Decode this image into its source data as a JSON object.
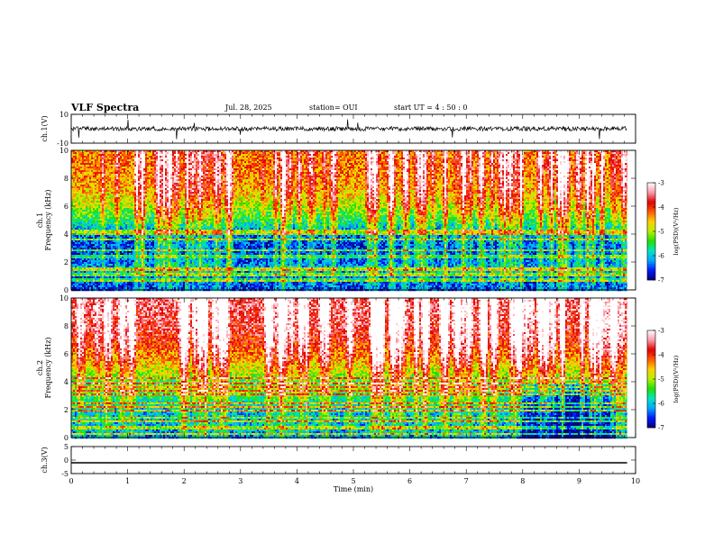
{
  "header": {
    "title": "VLF Spectra",
    "date": "Jul. 28, 2025",
    "station": "station= OUI",
    "start_ut": "start  UT  =  4 : 50 : 0"
  },
  "colors": {
    "axis": "#000000",
    "colormap": [
      "#05007a",
      "#0019ff",
      "#00a8ff",
      "#00e5c0",
      "#20e000",
      "#b8f000",
      "#ffd000",
      "#ff5a00",
      "#e00000",
      "#ff9aa8",
      "#ffffff"
    ]
  },
  "chart_data": [
    {
      "type": "line",
      "name": "channel-1-waveform",
      "ylabel": "ch.1(V)",
      "ylim": [
        -10,
        10
      ],
      "yticks": [
        "10",
        "-10"
      ],
      "xlim": [
        0,
        10
      ],
      "description_values": {
        "baseline_v": 0,
        "typical_amplitude_v": 1.5,
        "spike_amplitude_v": 8
      }
    },
    {
      "type": "heatmap",
      "name": "channel-1-spectrogram",
      "ylabel": "ch.1\nFrequency (kHz)",
      "ylabel_line1": "ch.1",
      "ylabel_line2": "Frequency (kHz)",
      "ylim": [
        0,
        10
      ],
      "yticks": [
        "0",
        "2",
        "4",
        "6",
        "8",
        "10"
      ],
      "xlim": [
        0,
        10
      ],
      "data_end_min": 9.85,
      "colorbar": {
        "label": "log(PSD)(V²/Hz)",
        "range": [
          -7,
          -3
        ],
        "ticks": [
          "-3",
          "-4",
          "-5",
          "-6",
          "-7"
        ]
      },
      "profile": [
        {
          "f": 0.0,
          "v": -6.6
        },
        {
          "f": 1.0,
          "v": -6.5
        },
        {
          "f": 1.5,
          "v": -6.0
        },
        {
          "f": 2.0,
          "v": -6.4
        },
        {
          "f": 3.0,
          "v": -6.6
        },
        {
          "f": 4.0,
          "v": -6.4
        },
        {
          "f": 5.0,
          "v": -5.6
        },
        {
          "f": 6.0,
          "v": -5.0
        },
        {
          "f": 7.0,
          "v": -4.6
        },
        {
          "f": 8.0,
          "v": -4.4
        },
        {
          "f": 9.0,
          "v": -4.3
        },
        {
          "f": 10.0,
          "v": -4.3
        }
      ]
    },
    {
      "type": "heatmap",
      "name": "channel-2-spectrogram",
      "ylabel": "ch.2\nFrequency (kHz)",
      "ylabel_line1": "ch.2",
      "ylabel_line2": "Frequency (kHz)",
      "ylim": [
        0,
        10
      ],
      "yticks": [
        "0",
        "2",
        "4",
        "6",
        "8",
        "10"
      ],
      "xlim": [
        0,
        10
      ],
      "data_end_min": 9.85,
      "colorbar": {
        "label": "log(PSD)(V²/Hz)",
        "range": [
          -7,
          -3
        ],
        "ticks": [
          "-3",
          "-4",
          "-5",
          "-6",
          "-7"
        ]
      },
      "profile": [
        {
          "f": 0.0,
          "v": -6.3
        },
        {
          "f": 1.0,
          "v": -6.1
        },
        {
          "f": 2.0,
          "v": -6.0
        },
        {
          "f": 3.0,
          "v": -5.6
        },
        {
          "f": 3.5,
          "v": -5.2
        },
        {
          "f": 4.0,
          "v": -5.4
        },
        {
          "f": 5.0,
          "v": -4.8
        },
        {
          "f": 6.0,
          "v": -4.3
        },
        {
          "f": 7.0,
          "v": -3.9
        },
        {
          "f": 8.0,
          "v": -3.7
        },
        {
          "f": 9.0,
          "v": -3.6
        },
        {
          "f": 10.0,
          "v": -3.6
        }
      ],
      "quiet_region": {
        "start_min": 7.85,
        "end_min": 9.6,
        "f_max_khz": 4.0,
        "offset": -1.0
      }
    },
    {
      "type": "line",
      "name": "channel-3-trace",
      "ylabel": "ch.3(V)",
      "ylim": [
        -5,
        5
      ],
      "yticks": [
        "5",
        "0",
        "-5"
      ],
      "xlim": [
        0,
        10
      ],
      "x": [
        0,
        9.85
      ],
      "y": [
        -1,
        -1
      ]
    }
  ],
  "xaxis": {
    "label": "Time (min)",
    "ticks": [
      "0",
      "1",
      "2",
      "3",
      "4",
      "5",
      "6",
      "7",
      "8",
      "9",
      "10"
    ]
  }
}
